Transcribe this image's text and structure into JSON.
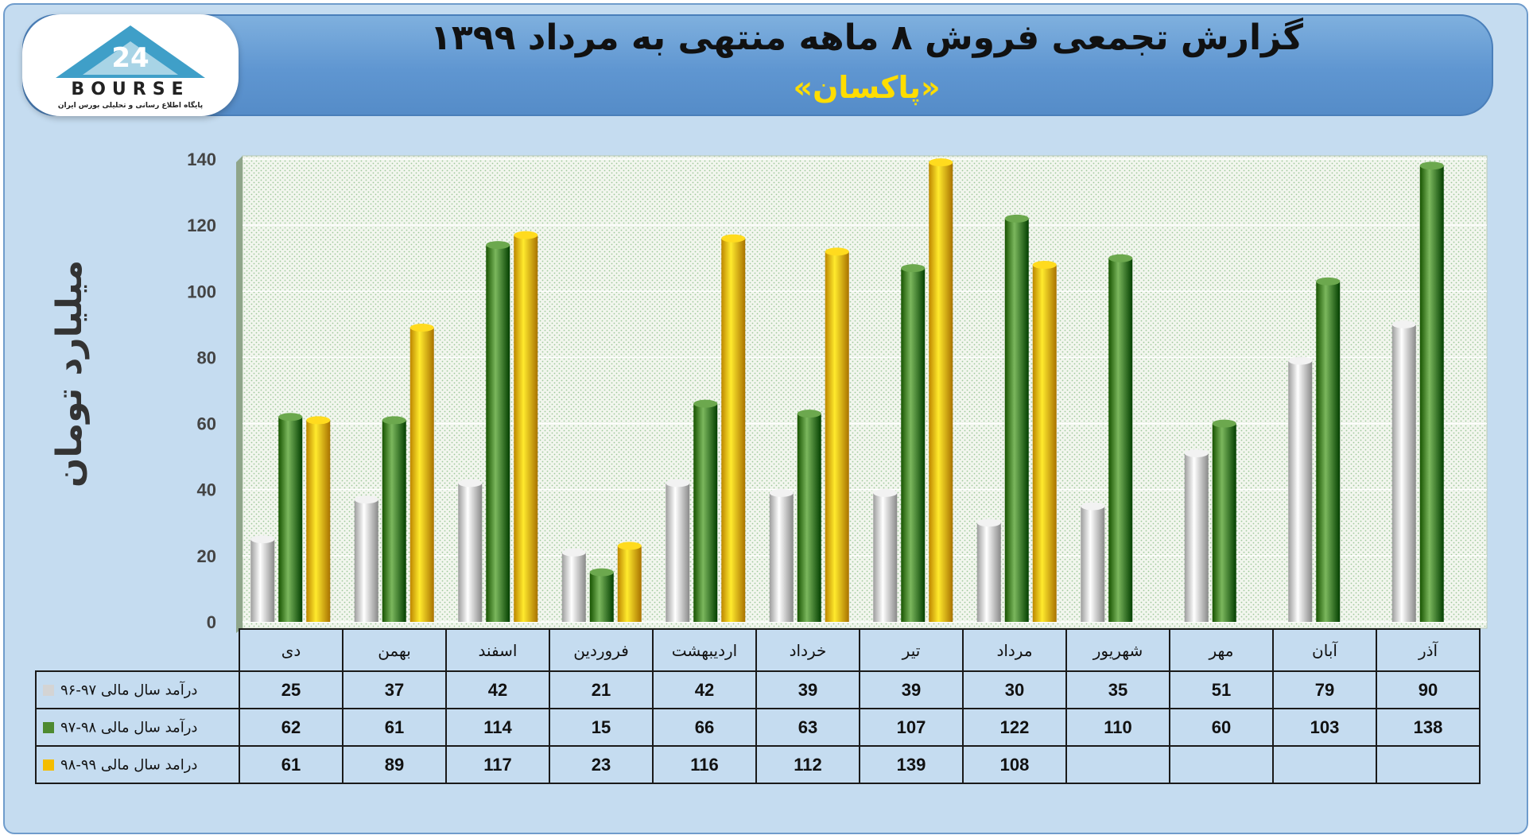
{
  "header": {
    "title": "گزارش تجمعی فروش ۸ ماهه منتهی به مرداد ۱۳۹۹",
    "subtitle": "«پاکسان»"
  },
  "logo": {
    "brand": "BOURSE",
    "number": "24",
    "tagline": "پایگاه اطلاع رسانی و تحلیلی بورس ایران"
  },
  "colors": {
    "series1": "#d4d4d4",
    "series2": "#4e8a30",
    "series3": "#f4bd00",
    "header_bg": "#5f96d1",
    "subtitle": "#ffdd00"
  },
  "chart_data": {
    "type": "bar",
    "ylabel": "میلیارد تومان",
    "ylim": [
      0,
      140
    ],
    "yticks": [
      0,
      20,
      40,
      60,
      80,
      100,
      120,
      140
    ],
    "grid": true,
    "categories": [
      "دی",
      "بهمن",
      "اسفند",
      "فروردین",
      "اردیبهشت",
      "خرداد",
      "تیر",
      "مرداد",
      "شهریور",
      "مهر",
      "آبان",
      "آذر"
    ],
    "series": [
      {
        "name": "درآمد سال مالی ۹۷-۹۶",
        "color": "#d4d4d4",
        "values": [
          25,
          37,
          42,
          21,
          42,
          39,
          39,
          30,
          35,
          51,
          79,
          90
        ]
      },
      {
        "name": "درآمد سال مالی ۹۸-۹۷",
        "color": "#4e8a30",
        "values": [
          62,
          61,
          114,
          15,
          66,
          63,
          107,
          122,
          110,
          60,
          103,
          138
        ]
      },
      {
        "name": "درامد سال مالی ۹۹-۹۸",
        "color": "#f4bd00",
        "values": [
          61,
          89,
          117,
          23,
          116,
          112,
          139,
          108,
          null,
          null,
          null,
          null
        ]
      }
    ]
  }
}
